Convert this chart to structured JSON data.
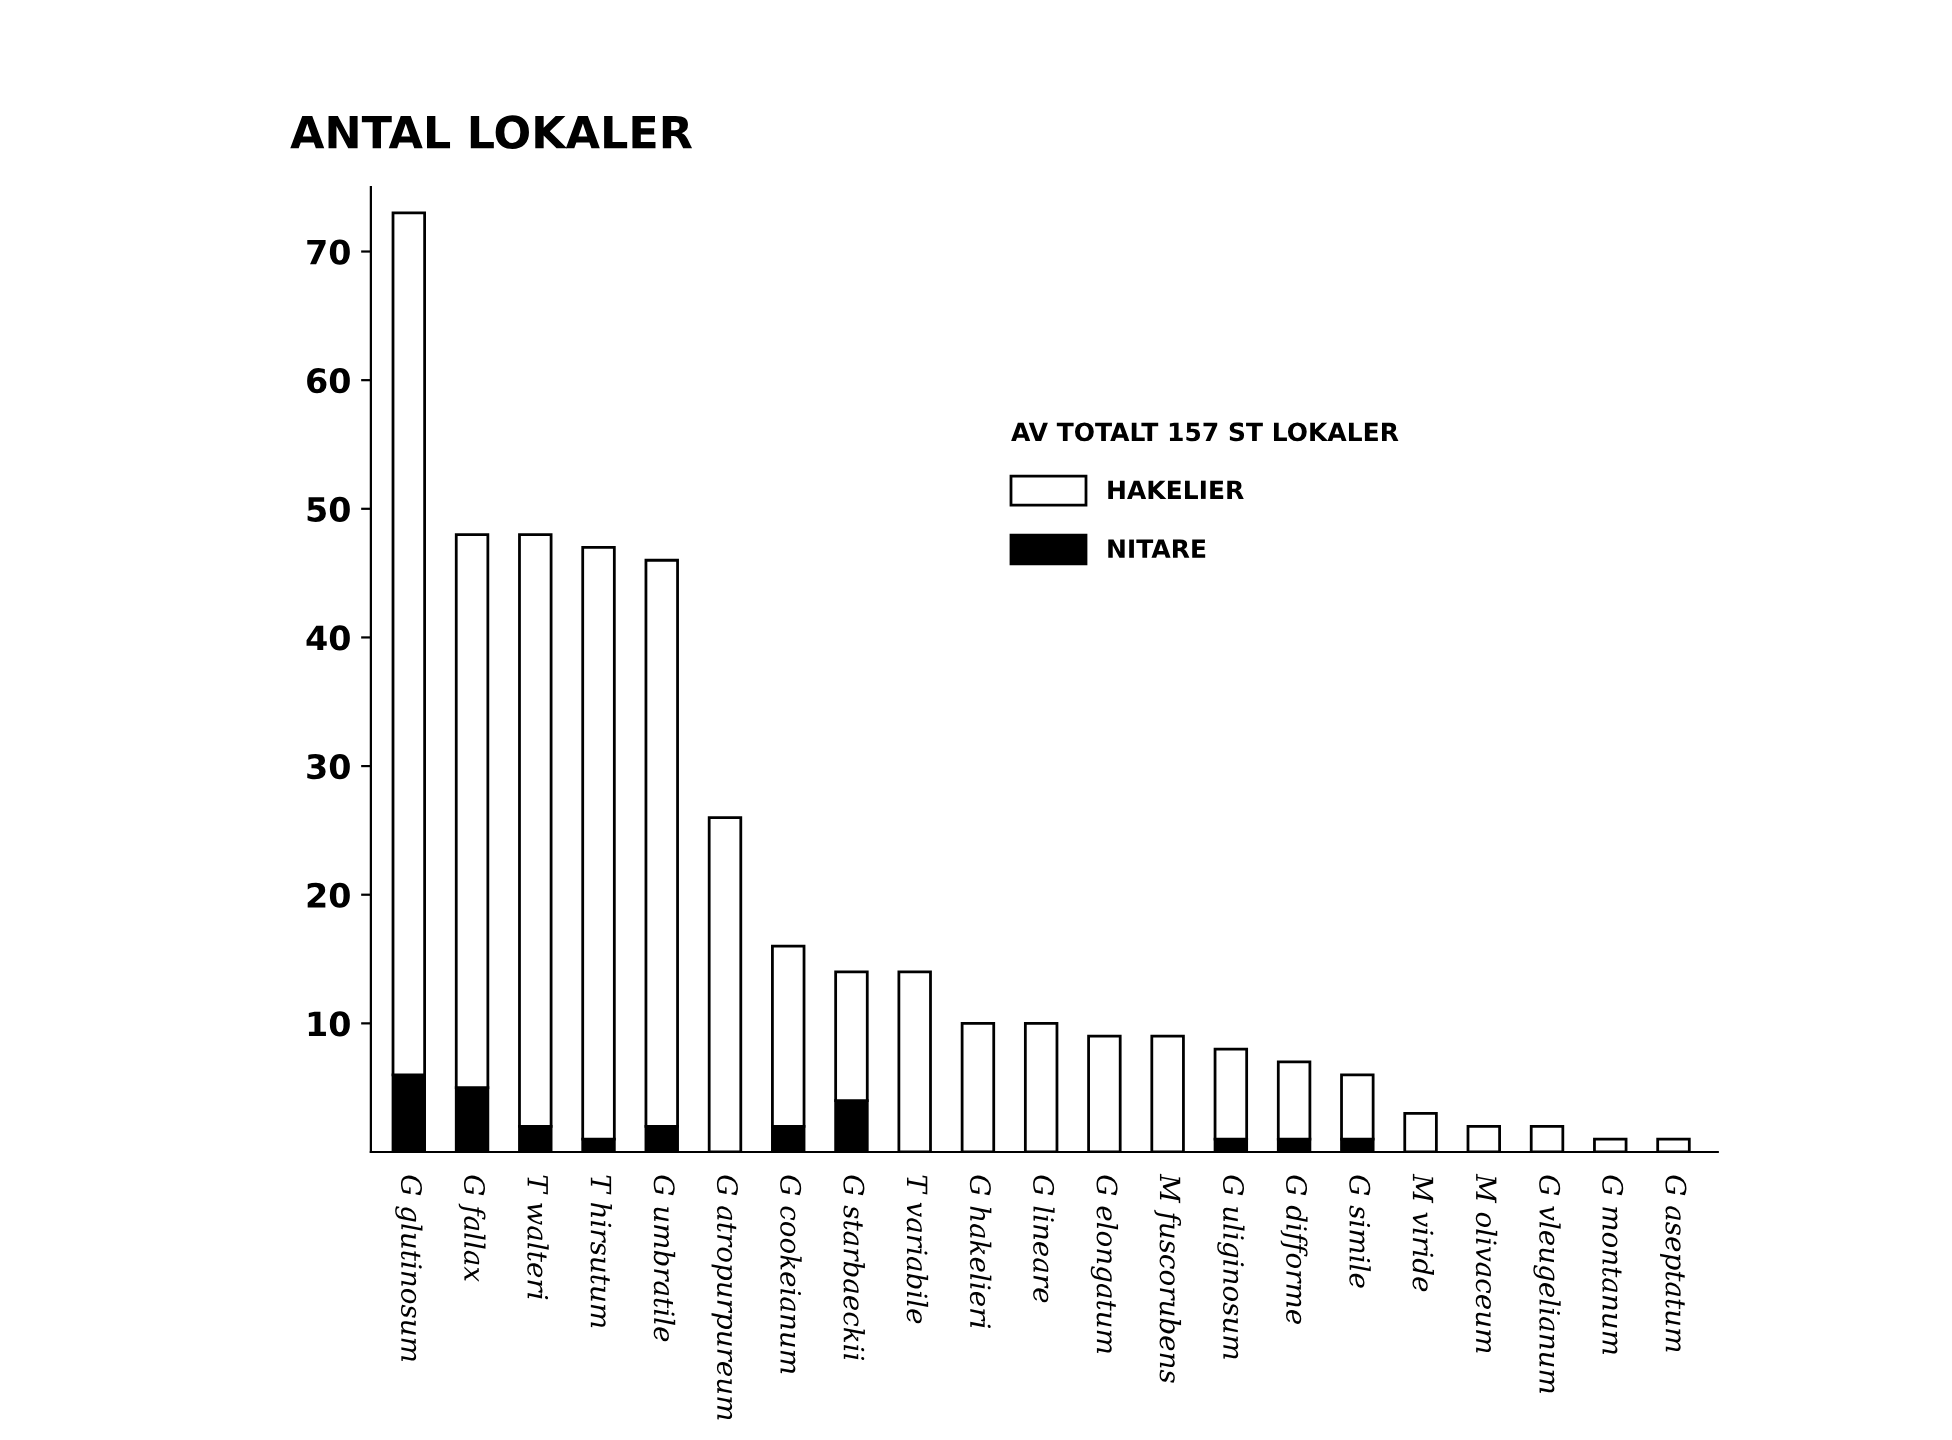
{
  "chart_data": {
    "type": "bar",
    "title": "ANTAL LOKALER",
    "legend_title": "AV TOTALT 157 ST LOKALER",
    "categories": [
      "G glutinosum",
      "G fallax",
      "T walteri",
      "T hirsutum",
      "G umbratile",
      "G atropurpureum",
      "G cookeianum",
      "G starbaeckii",
      "T variabile",
      "G hakelieri",
      "G lineare",
      "G elongatum",
      "M fuscorubens",
      "G uliginosum",
      "G difforme",
      "G simile",
      "M viride",
      "M olivaceum",
      "G vleugelianum",
      "G montanum",
      "G aseptatum"
    ],
    "stacked": true,
    "series": [
      {
        "name": "NITARE",
        "color": "#000000",
        "values": [
          6,
          5,
          2,
          1,
          2,
          0,
          2,
          4,
          0,
          0,
          0,
          0,
          0,
          1,
          1,
          1,
          0,
          0,
          0,
          0,
          0
        ]
      },
      {
        "name": "HAKELIER",
        "color": "#ffffff",
        "values": [
          67,
          43,
          46,
          46,
          44,
          26,
          14,
          10,
          14,
          10,
          10,
          9,
          9,
          7,
          6,
          5,
          3,
          2,
          2,
          1,
          1
        ]
      }
    ],
    "ylim": [
      0,
      75
    ],
    "yticks": [
      10,
      20,
      30,
      40,
      50,
      60,
      70
    ],
    "grid": false,
    "legend": "top right"
  }
}
